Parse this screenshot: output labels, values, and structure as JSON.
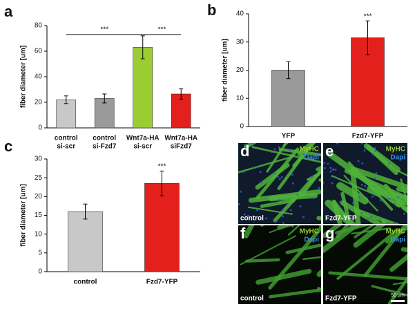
{
  "chart_data": [
    {
      "type": "bar",
      "panel": "a",
      "y_label": "fiber diameter [um]",
      "categories": [
        [
          "control",
          "si-scr"
        ],
        [
          "control",
          "si-Fzd7"
        ],
        [
          "Wnt7a-HA",
          "si-scr"
        ],
        [
          "Wnt7a-HA",
          "siFzd7"
        ]
      ],
      "values": [
        22,
        23,
        63,
        26.5
      ],
      "errors": [
        3,
        3.5,
        9,
        4
      ],
      "colors": [
        "#c8c8c8",
        "#9a9a9a",
        "#9acd32",
        "#e3201c"
      ],
      "ylim": [
        0,
        80
      ],
      "yticks": [
        0,
        20,
        40,
        60,
        80
      ],
      "annotations": [
        "***",
        "***"
      ]
    },
    {
      "type": "bar",
      "panel": "b",
      "y_label": "fiber diameter [um]",
      "categories": [
        [
          "YFP"
        ],
        [
          "Fzd7-YFP"
        ]
      ],
      "values": [
        20,
        31.5
      ],
      "errors": [
        3,
        6
      ],
      "colors": [
        "#9a9a9a",
        "#e3201c"
      ],
      "ylim": [
        0,
        40
      ],
      "yticks": [
        0,
        10,
        20,
        30,
        40
      ],
      "annotations": [
        "***"
      ]
    },
    {
      "type": "bar",
      "panel": "c",
      "y_label": "fiber diameter [um]",
      "categories": [
        [
          "control"
        ],
        [
          "Fzd7-YFP"
        ]
      ],
      "values": [
        16,
        23.5
      ],
      "errors": [
        2,
        3.3
      ],
      "colors": [
        "#c8c8c8",
        "#e3201c"
      ],
      "ylim": [
        0,
        30
      ],
      "yticks": [
        0,
        5,
        10,
        15,
        20,
        25,
        30
      ],
      "annotations": [
        "***"
      ]
    }
  ],
  "images": [
    {
      "panel": "d",
      "stains": [
        "MyHC",
        "Dapi"
      ],
      "label": "control"
    },
    {
      "panel": "e",
      "stains": [
        "MyHC",
        "Dapi"
      ],
      "label": "Fzd7-YFP"
    },
    {
      "panel": "f",
      "stains": [
        "MyHC",
        "Dapi"
      ],
      "label": "control"
    },
    {
      "panel": "g",
      "stains": [
        "MyHC",
        "Dapi"
      ],
      "label": "Fzd7-YFP",
      "scale_bar": "50 µm"
    }
  ]
}
